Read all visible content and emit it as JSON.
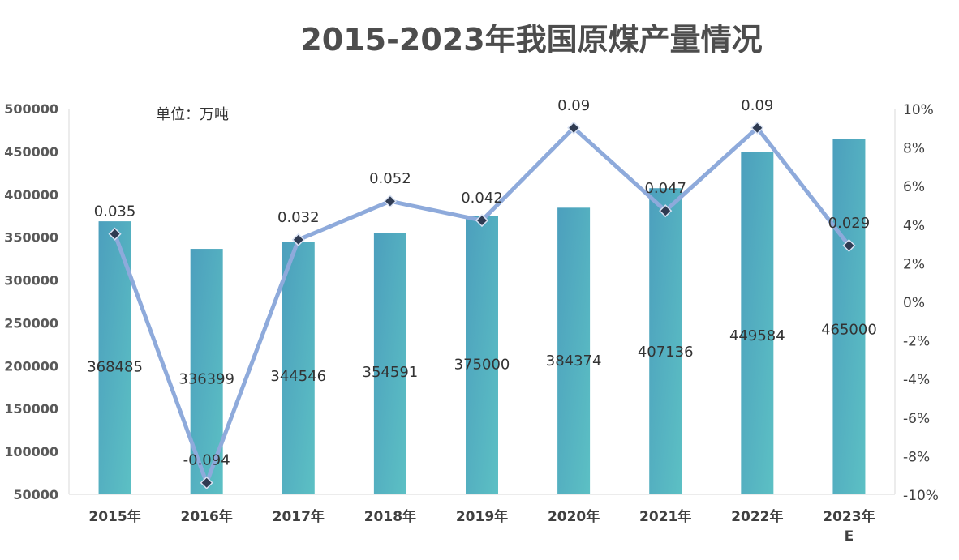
{
  "chart_data": {
    "type": "bar+line",
    "title": "2015-2023年我国原煤产量情况",
    "unit_note": "单位：万吨",
    "categories": [
      "2015年",
      "2016年",
      "2017年",
      "2018年",
      "2019年",
      "2020年",
      "2021年",
      "2022年",
      "2023年E"
    ],
    "bar_series": {
      "values": [
        368485,
        336399,
        344546,
        354591,
        375000,
        384374,
        407136,
        449584,
        465000
      ],
      "labels": [
        "368485",
        "336399",
        "344546",
        "354591",
        "375000",
        "384374",
        "407136",
        "449584",
        "465000"
      ],
      "color": "#4fa9be"
    },
    "line_series": {
      "values": [
        0.035,
        -0.094,
        0.032,
        0.052,
        0.042,
        0.09,
        0.047,
        0.09,
        0.029
      ],
      "labels": [
        "0.035",
        "-0.094",
        "0.032",
        "0.052",
        "0.042",
        "0.09",
        "0.047",
        "0.09",
        "0.029"
      ],
      "line_color": "#8eaadb",
      "marker_color": "#2f3b52"
    },
    "y_left": {
      "min": 50000,
      "max": 500000,
      "ticks": [
        "500000",
        "450000",
        "400000",
        "350000",
        "300000",
        "250000",
        "200000",
        "150000",
        "100000",
        "50000"
      ]
    },
    "y_right": {
      "min": -0.1,
      "max": 0.1,
      "ticks": [
        "10%",
        "8%",
        "6%",
        "4%",
        "2%",
        "0%",
        "-2%",
        "-4%",
        "-6%",
        "-8%",
        "-10%"
      ]
    },
    "grid": false,
    "legend": "none"
  }
}
